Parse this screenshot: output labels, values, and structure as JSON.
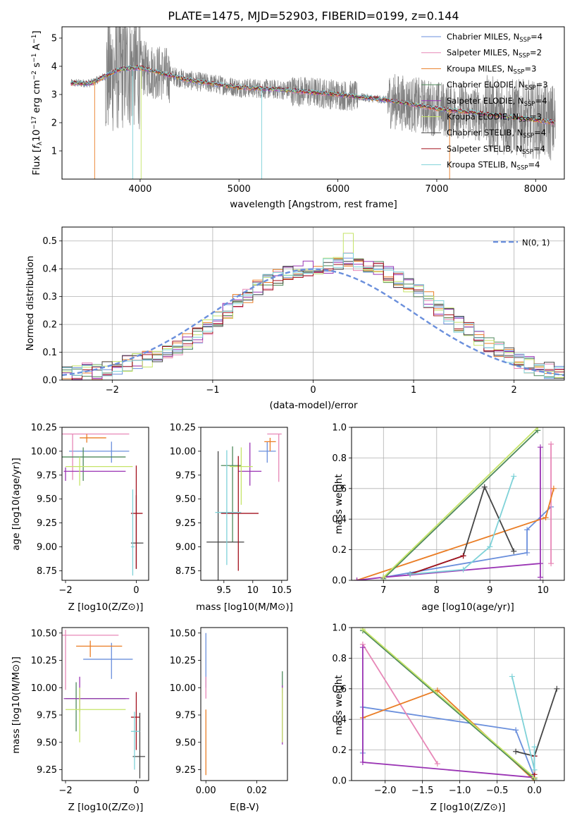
{
  "colors": [
    "#6a8fdc",
    "#e787b7",
    "#ea7d25",
    "#4f8a5b",
    "#9a34b4",
    "#c5e468",
    "#454545",
    "#a3121e",
    "#7fd2d8"
  ],
  "chart_data": [
    {
      "type": "line",
      "title": "PLATE=1475, MJD=52903, FIBERID=0199, z=0.144",
      "xlabel": "wavelength [Angstrom, rest frame]",
      "ylabel": "Flux [f_λ10^-17 erg cm^-2 s^-1 A^-1]",
      "xlim": [
        3210,
        8290
      ],
      "ylim": [
        0,
        5.4
      ],
      "xticks": [
        4000,
        5000,
        6000,
        7000,
        8000
      ],
      "yticks": [
        1,
        2,
        3,
        4,
        5
      ],
      "grid": false,
      "legend_position": "top-right",
      "data_series": {
        "name": "",
        "color": "#808080",
        "wavelength_range": [
          3300,
          8200
        ]
      },
      "series": [
        {
          "name": "Chabrier MILES, N_SSP=4"
        },
        {
          "name": "Salpeter MILES, N_SSP=2"
        },
        {
          "name": "Kroupa MILES, N_SSP=3"
        },
        {
          "name": "Chabrier ELODIE, N_SSP=3"
        },
        {
          "name": "Salpeter ELODIE, N_SSP=4"
        },
        {
          "name": "Kroupa ELODIE, N_SSP=3"
        },
        {
          "name": "Chabrier STELIB, N_SSP=4"
        },
        {
          "name": "Salpeter STELIB, N_SSP=4"
        },
        {
          "name": "Kroupa STELIB, N_SSP=4"
        }
      ],
      "approx_continuum": {
        "x": [
          3300,
          3500,
          3800,
          4000,
          4500,
          5000,
          5500,
          6000,
          6500,
          7000,
          7500,
          8000,
          8200
        ],
        "y": [
          3.4,
          3.4,
          3.9,
          3.95,
          3.5,
          3.25,
          3.15,
          3.0,
          2.8,
          2.5,
          2.3,
          2.1,
          2.0
        ]
      }
    },
    {
      "type": "step",
      "xlabel": "(data-model)/error",
      "ylabel": "Normed distribution",
      "xlim": [
        -2.5,
        2.5
      ],
      "ylim": [
        0,
        0.55
      ],
      "xticks": [
        -2,
        -1,
        0,
        1,
        2
      ],
      "yticks": [
        0.0,
        0.1,
        0.2,
        0.3,
        0.4,
        0.5
      ],
      "grid": true,
      "legend_position": "top-right",
      "legend_label": "N(0, 1)",
      "bin_width": 0.1,
      "histogram_heights": [
        0.02,
        0.025,
        0.035,
        0.03,
        0.04,
        0.05,
        0.06,
        0.07,
        0.075,
        0.085,
        0.1,
        0.12,
        0.14,
        0.16,
        0.19,
        0.22,
        0.25,
        0.28,
        0.3,
        0.33,
        0.35,
        0.37,
        0.38,
        0.39,
        0.4,
        0.41,
        0.41,
        0.42,
        0.43,
        0.42,
        0.41,
        0.4,
        0.38,
        0.36,
        0.34,
        0.32,
        0.29,
        0.26,
        0.23,
        0.2,
        0.18,
        0.15,
        0.13,
        0.11,
        0.09,
        0.07,
        0.055,
        0.045,
        0.035,
        0.03
      ]
    },
    {
      "type": "errorbar",
      "xlabel": "Z [log10(Z/Z⊙)]",
      "ylabel": "age  [log10(age/yr)]",
      "xlim": [
        -2.1,
        0.35
      ],
      "ylim": [
        8.65,
        10.25
      ],
      "xticks": [
        -2,
        0
      ],
      "yticks": [
        8.75,
        9.0,
        9.25,
        9.5,
        9.75,
        10.0,
        10.25
      ],
      "points": [
        {
          "x": -0.7,
          "y": 10.0,
          "xerr": [
            1.2,
            0.5
          ],
          "yerr": [
            0.12,
            0.1
          ]
        },
        {
          "x": -1.8,
          "y": 10.18,
          "xerr": [
            0.3,
            1.6
          ],
          "yerr": [
            0.48,
            0.0
          ]
        },
        {
          "x": -1.4,
          "y": 10.14,
          "xerr": [
            0.2,
            0.55
          ],
          "yerr": [
            0.05,
            0.04
          ]
        },
        {
          "x": -1.5,
          "y": 9.94,
          "xerr": [
            0.6,
            1.2
          ],
          "yerr": [
            0.25,
            0.1
          ]
        },
        {
          "x": -2.0,
          "y": 9.79,
          "xerr": [
            0.05,
            1.7
          ],
          "yerr": [
            0.1,
            0.04
          ]
        },
        {
          "x": -1.6,
          "y": 9.84,
          "xerr": [
            0.4,
            1.5
          ],
          "yerr": [
            0.2,
            0.1
          ]
        },
        {
          "x": 0.0,
          "y": 9.04,
          "xerr": [
            0.15,
            0.2
          ],
          "yerr": [
            0.27,
            0.5
          ]
        },
        {
          "x": 0.0,
          "y": 9.35,
          "xerr": [
            0.15,
            0.18
          ],
          "yerr": [
            0.58,
            0.5
          ]
        },
        {
          "x": -0.1,
          "y": 9.0,
          "xerr": [
            0.05,
            0.05
          ],
          "yerr": [
            0.3,
            0.6
          ]
        }
      ]
    },
    {
      "type": "errorbar",
      "xlabel": "mass [log10(M/M⊙)]",
      "xlim": [
        9.1,
        10.6
      ],
      "ylim": [
        8.65,
        10.25
      ],
      "xticks": [
        9.5,
        10.0,
        10.5
      ],
      "yticks": [
        8.75,
        9.0,
        9.25,
        9.5,
        9.75,
        10.0,
        10.25
      ],
      "points": [
        {
          "x": 10.25,
          "y": 10.0,
          "xerr": [
            0.15,
            0.15
          ],
          "yerr": [
            0.12,
            0.1
          ]
        },
        {
          "x": 10.45,
          "y": 10.18,
          "xerr": [
            0.2,
            0.05
          ],
          "yerr": [
            0.5,
            0.0
          ]
        },
        {
          "x": 10.3,
          "y": 10.1,
          "xerr": [
            0.1,
            0.1
          ],
          "yerr": [
            0.1,
            0.04
          ]
        },
        {
          "x": 9.65,
          "y": 9.85,
          "xerr": [
            0.2,
            0.15
          ],
          "yerr": [
            0.8,
            0.2
          ]
        },
        {
          "x": 9.95,
          "y": 9.79,
          "xerr": [
            0.2,
            0.2
          ],
          "yerr": [
            0.15,
            0.3
          ]
        },
        {
          "x": 9.8,
          "y": 9.84,
          "xerr": [
            0.2,
            0.2
          ],
          "yerr": [
            0.4,
            0.2
          ]
        },
        {
          "x": 9.4,
          "y": 9.05,
          "xerr": [
            0.2,
            0.45
          ],
          "yerr": [
            0.65,
            0.95
          ]
        },
        {
          "x": 9.75,
          "y": 9.35,
          "xerr": [
            0.3,
            0.35
          ],
          "yerr": [
            0.6,
            0.6
          ]
        },
        {
          "x": 9.55,
          "y": 9.36,
          "xerr": [
            0.2,
            0.25
          ],
          "yerr": [
            0.55,
            0.65
          ]
        }
      ]
    },
    {
      "type": "line",
      "xlabel": "age  [log10(age/yr)]",
      "ylabel": "mass weight",
      "xlim": [
        6.4,
        10.4
      ],
      "ylim": [
        0,
        1.0
      ],
      "xticks": [
        7,
        8,
        9,
        10
      ],
      "yticks": [
        0.0,
        0.2,
        0.4,
        0.6,
        0.8,
        1.0
      ],
      "grid": true,
      "series": [
        {
          "x": [
            7.0,
            9.7,
            9.7,
            10.15
          ],
          "y": [
            0.02,
            0.18,
            0.33,
            0.48
          ]
        },
        {
          "x": [
            10.15,
            10.15
          ],
          "y": [
            0.11,
            0.89
          ]
        },
        {
          "x": [
            6.5,
            10.05,
            10.2
          ],
          "y": [
            0.0,
            0.41,
            0.6
          ]
        },
        {
          "x": [
            7.0,
            9.9
          ],
          "y": [
            0.01,
            0.98
          ]
        },
        {
          "x": [
            6.5,
            7.0,
            9.95,
            9.95,
            9.95
          ],
          "y": [
            0.0,
            0.02,
            0.11,
            0.87,
            0.02
          ]
        },
        {
          "x": [
            7.0,
            9.9
          ],
          "y": [
            0.02,
            1.0
          ]
        },
        {
          "x": [
            7.5,
            8.5,
            8.9,
            9.45
          ],
          "y": [
            0.04,
            0.16,
            0.61,
            0.19
          ]
        },
        {
          "x": [
            7.5,
            8.5
          ],
          "y": [
            0.04,
            0.16
          ]
        },
        {
          "x": [
            7.5,
            8.5,
            9.0,
            9.45
          ],
          "y": [
            0.04,
            0.07,
            0.22,
            0.68
          ]
        }
      ]
    },
    {
      "type": "errorbar",
      "xlabel": "Z [log10(Z/Z⊙)]",
      "ylabel": "mass [log10(M/M⊙)]",
      "xlim": [
        -2.1,
        0.35
      ],
      "ylim": [
        9.15,
        10.55
      ],
      "xticks": [
        -2,
        0
      ],
      "yticks": [
        9.25,
        9.5,
        9.75,
        10.0,
        10.25,
        10.5
      ],
      "points": [
        {
          "x": -0.7,
          "y": 10.26,
          "xerr": [
            0.8,
            0.6
          ],
          "yerr": [
            0.18,
            0.15
          ]
        },
        {
          "x": -2.0,
          "y": 10.48,
          "xerr": [
            0.1,
            1.5
          ],
          "yerr": [
            0.5,
            0.05
          ]
        },
        {
          "x": -1.3,
          "y": 10.38,
          "xerr": [
            0.4,
            0.9
          ],
          "yerr": [
            0.1,
            0.05
          ]
        },
        {
          "x": -1.7,
          "y": 9.9,
          "xerr": [
            0.3,
            1.4
          ],
          "yerr": [
            0.3,
            0.15
          ]
        },
        {
          "x": -1.6,
          "y": 9.9,
          "xerr": [
            0.45,
            1.4
          ],
          "yerr": [
            0.12,
            0.2
          ]
        },
        {
          "x": -1.6,
          "y": 9.8,
          "xerr": [
            0.4,
            1.3
          ],
          "yerr": [
            0.3,
            0.2
          ]
        },
        {
          "x": 0.1,
          "y": 9.37,
          "xerr": [
            0.2,
            0.15
          ],
          "yerr": [
            0.2,
            0.4
          ]
        },
        {
          "x": 0.0,
          "y": 9.73,
          "xerr": [
            0.15,
            0.1
          ],
          "yerr": [
            0.3,
            0.23
          ]
        },
        {
          "x": -0.05,
          "y": 9.6,
          "xerr": [
            0.1,
            0.15
          ],
          "yerr": [
            0.35,
            0.18
          ]
        }
      ]
    },
    {
      "type": "errorbar",
      "xlabel": "E(B-V)",
      "xlim": [
        -0.002,
        0.032
      ],
      "ylim": [
        9.15,
        10.55
      ],
      "xticks": [
        0.0,
        0.02
      ],
      "yticks": [
        9.25,
        9.5,
        9.75,
        10.0,
        10.25,
        10.5
      ],
      "points": [
        {
          "x": 0.0,
          "y": 10.25,
          "xerr": [
            0,
            0
          ],
          "yerr": [
            0.25,
            0.25
          ]
        },
        {
          "x": 0.0,
          "y": 10.0,
          "xerr": [
            0,
            0
          ],
          "yerr": [
            0.1,
            0.1
          ]
        },
        {
          "x": 0.0,
          "y": 9.5,
          "xerr": [
            0,
            0
          ],
          "yerr": [
            0.3,
            0.3
          ]
        },
        {
          "x": 0.03,
          "y": 10.05,
          "xerr": [
            0,
            0
          ],
          "yerr": [
            0.1,
            0.1
          ]
        },
        {
          "x": 0.03,
          "y": 9.75,
          "xerr": [
            0,
            0
          ],
          "yerr": [
            0.27,
            0.27
          ]
        },
        {
          "x": 0.03,
          "y": 9.75,
          "xerr": [
            0,
            0
          ],
          "yerr": [
            0.25,
            0.25
          ]
        }
      ]
    },
    {
      "type": "line",
      "xlabel": "Z [log10(Z/Z⊙)]",
      "ylabel": "mass weight",
      "xlim": [
        -2.45,
        0.4
      ],
      "ylim": [
        0,
        1.0
      ],
      "xticks": [
        -2.0,
        -1.5,
        -1.0,
        -0.5,
        0.0
      ],
      "yticks": [
        0.0,
        0.2,
        0.4,
        0.6,
        0.8,
        1.0
      ],
      "grid": true,
      "series": [
        {
          "x": [
            -2.3,
            -2.3,
            -0.25,
            0.0
          ],
          "y": [
            0.18,
            0.48,
            0.33,
            0.02
          ]
        },
        {
          "x": [
            -2.3,
            -1.3
          ],
          "y": [
            0.89,
            0.11
          ]
        },
        {
          "x": [
            -2.3,
            -1.3,
            0.0
          ],
          "y": [
            0.41,
            0.59,
            0.0
          ]
        },
        {
          "x": [
            -2.3,
            0.0
          ],
          "y": [
            0.98,
            0.01
          ]
        },
        {
          "x": [
            -2.3,
            -2.3,
            0.0
          ],
          "y": [
            0.87,
            0.12,
            0.02
          ]
        },
        {
          "x": [
            -2.3,
            0.0
          ],
          "y": [
            0.99,
            0.02
          ]
        },
        {
          "x": [
            0.3,
            0.0,
            -0.25
          ],
          "y": [
            0.6,
            0.16,
            0.19
          ]
        },
        {
          "x": [
            0.0,
            0.0
          ],
          "y": [
            0.04,
            0.16
          ]
        },
        {
          "x": [
            -0.3,
            0.0,
            0.0
          ],
          "y": [
            0.68,
            0.07,
            0.22
          ]
        }
      ]
    }
  ]
}
